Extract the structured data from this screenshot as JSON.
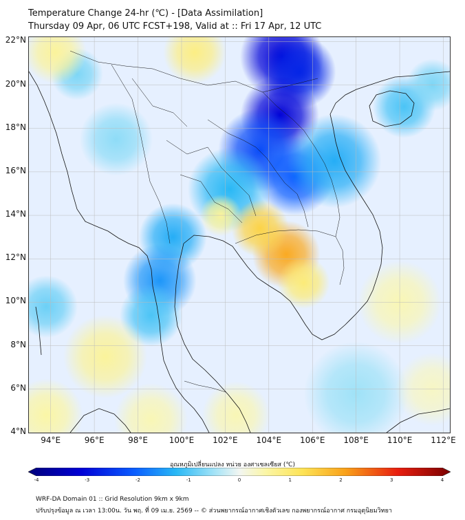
{
  "title": {
    "line1": "Temperature Change 24-hr (℃) - [Data Assimilation]",
    "line2": "Thursday 09 Apr, 06 UTC FCST+198, Valid at :: Fri 17 Apr, 12 UTC"
  },
  "map": {
    "lat_range": [
      4,
      22.2
    ],
    "lon_range": [
      93,
      112.3
    ],
    "lat_ticks": [
      {
        "value": 22,
        "label": "22°N"
      },
      {
        "value": 20,
        "label": "20°N"
      },
      {
        "value": 18,
        "label": "18°N"
      },
      {
        "value": 16,
        "label": "16°N"
      },
      {
        "value": 14,
        "label": "14°N"
      },
      {
        "value": 12,
        "label": "12°N"
      },
      {
        "value": 10,
        "label": "10°N"
      },
      {
        "value": 8,
        "label": "8°N"
      },
      {
        "value": 6,
        "label": "6°N"
      },
      {
        "value": 4,
        "label": "4°N"
      }
    ],
    "lon_ticks": [
      {
        "value": 94,
        "label": "94°E"
      },
      {
        "value": 96,
        "label": "96°E"
      },
      {
        "value": 98,
        "label": "98°E"
      },
      {
        "value": 100,
        "label": "100°E"
      },
      {
        "value": 102,
        "label": "102°E"
      },
      {
        "value": 104,
        "label": "104°E"
      },
      {
        "value": 106,
        "label": "106°E"
      },
      {
        "value": 108,
        "label": "108°E"
      },
      {
        "value": 110,
        "label": "110°E"
      },
      {
        "value": 112,
        "label": "112°E"
      }
    ],
    "field_blobs": [
      {
        "lon": 104.6,
        "lat": 21.3,
        "value": -3.0,
        "r": 1.6
      },
      {
        "lon": 105.4,
        "lat": 20.6,
        "value": -2.6,
        "r": 1.4
      },
      {
        "lon": 104.5,
        "lat": 18.6,
        "value": -3.0,
        "r": 1.5
      },
      {
        "lon": 103.6,
        "lat": 17.0,
        "value": -2.2,
        "r": 1.6
      },
      {
        "lon": 105.2,
        "lat": 15.8,
        "value": -2.0,
        "r": 1.5
      },
      {
        "lon": 107.0,
        "lat": 16.5,
        "value": -1.3,
        "r": 1.8
      },
      {
        "lon": 102.2,
        "lat": 15.2,
        "value": -1.2,
        "r": 1.6
      },
      {
        "lon": 99.6,
        "lat": 13.0,
        "value": -1.3,
        "r": 1.3
      },
      {
        "lon": 99.0,
        "lat": 11.0,
        "value": -1.5,
        "r": 1.4
      },
      {
        "lon": 98.6,
        "lat": 9.4,
        "value": -1.0,
        "r": 1.2
      },
      {
        "lon": 93.8,
        "lat": 9.8,
        "value": -0.8,
        "r": 1.2
      },
      {
        "lon": 95.2,
        "lat": 20.5,
        "value": -0.7,
        "r": 1.0
      },
      {
        "lon": 110.2,
        "lat": 19.0,
        "value": -1.0,
        "r": 1.2
      },
      {
        "lon": 111.5,
        "lat": 20.0,
        "value": -0.7,
        "r": 1.0
      },
      {
        "lon": 97.0,
        "lat": 17.5,
        "value": -0.6,
        "r": 1.4
      },
      {
        "lon": 108.0,
        "lat": 5.8,
        "value": -0.5,
        "r": 2.0
      },
      {
        "lon": 104.8,
        "lat": 12.2,
        "value": 1.9,
        "r": 1.3
      },
      {
        "lon": 103.6,
        "lat": 13.4,
        "value": 1.4,
        "r": 1.1
      },
      {
        "lon": 105.6,
        "lat": 10.9,
        "value": 0.9,
        "r": 1.0
      },
      {
        "lon": 100.6,
        "lat": 21.5,
        "value": 0.8,
        "r": 1.2
      },
      {
        "lon": 94.2,
        "lat": 21.5,
        "value": 0.6,
        "r": 1.2
      },
      {
        "lon": 101.8,
        "lat": 14.0,
        "value": 0.6,
        "r": 0.8
      },
      {
        "lon": 96.5,
        "lat": 7.5,
        "value": 0.6,
        "r": 1.6
      },
      {
        "lon": 93.8,
        "lat": 4.8,
        "value": 0.5,
        "r": 1.4
      },
      {
        "lon": 98.6,
        "lat": 4.6,
        "value": 0.4,
        "r": 1.4
      },
      {
        "lon": 102.5,
        "lat": 4.8,
        "value": 0.4,
        "r": 1.3
      },
      {
        "lon": 110.0,
        "lat": 10.0,
        "value": 0.4,
        "r": 1.6
      },
      {
        "lon": 111.5,
        "lat": 6.0,
        "value": 0.3,
        "r": 1.4
      }
    ],
    "colors": {
      "sea": "#e6f0ff",
      "coastline": "#111111",
      "grid": "#bbbbbb"
    }
  },
  "colorbar": {
    "title": "อุณหภูมิเปลี่ยนแปลง หน่วย องศาเซลเซียส (℃)",
    "min": -4,
    "max": 4,
    "ticks": [
      {
        "value": -4,
        "label": "-4"
      },
      {
        "value": -3,
        "label": "-3"
      },
      {
        "value": -2,
        "label": "-2"
      },
      {
        "value": -1,
        "label": "-1"
      },
      {
        "value": 0,
        "label": "0"
      },
      {
        "value": 1,
        "label": "1"
      },
      {
        "value": 2,
        "label": "2"
      },
      {
        "value": 3,
        "label": "3"
      },
      {
        "value": 4,
        "label": "4"
      }
    ],
    "stops": [
      {
        "value": -4.0,
        "color": "#00007a"
      },
      {
        "value": -3.0,
        "color": "#0000d6"
      },
      {
        "value": -2.0,
        "color": "#0a5cff"
      },
      {
        "value": -1.2,
        "color": "#29b8f5"
      },
      {
        "value": -0.5,
        "color": "#9fe2f7"
      },
      {
        "value": 0.0,
        "color": "#f2f6f2"
      },
      {
        "value": 0.5,
        "color": "#fbf6a6"
      },
      {
        "value": 1.2,
        "color": "#fde356"
      },
      {
        "value": 2.0,
        "color": "#f9a21a"
      },
      {
        "value": 3.0,
        "color": "#e81e0f"
      },
      {
        "value": 4.0,
        "color": "#7a0000"
      }
    ]
  },
  "footer": {
    "line1": "WRF-DA Domain 01 :: Grid Resolution 9km x 9km",
    "line2": "ปรับปรุงข้อมูล ณ เวลา 13:00น. วัน พฤ. ที่ 09 เม.ย. 2569 -- © ส่วนพยากรณ์อากาศเชิงตัวเลข กองพยากรณ์อากาศ กรมอุตุนิยมวิทยา"
  }
}
